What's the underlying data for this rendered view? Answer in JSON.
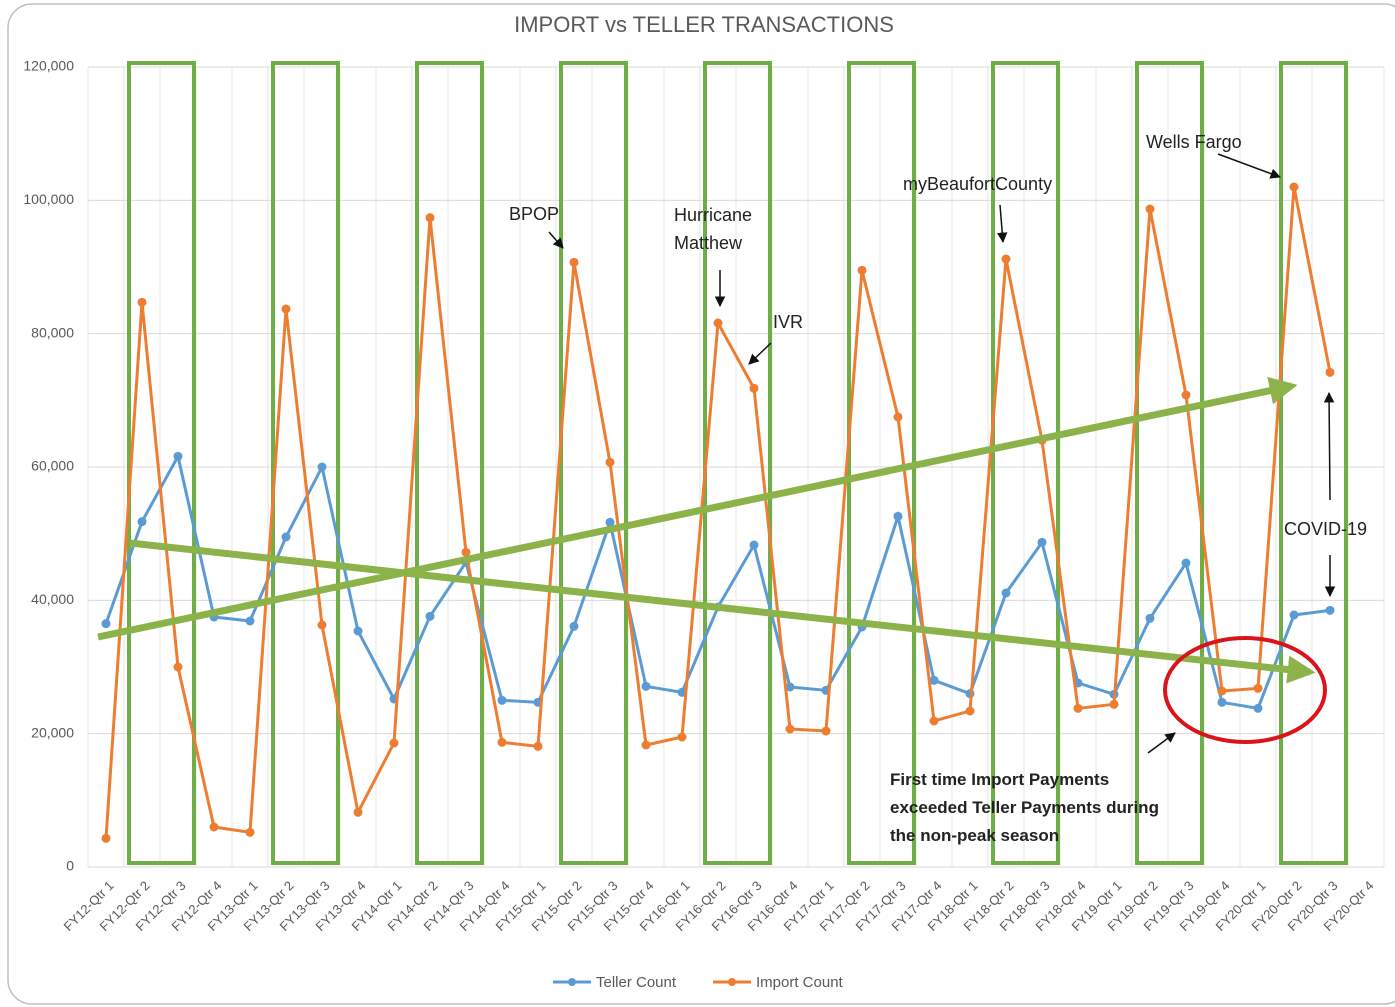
{
  "chart_data": {
    "type": "line",
    "title": "IMPORT vs TELLER TRANSACTIONS",
    "categories": [
      "FY12-Qtr 1",
      "FY12-Qtr 2",
      "FY12-Qtr 3",
      "FY12-Qtr 4",
      "FY13-Qtr 1",
      "FY13-Qtr 2",
      "FY13-Qtr 3",
      "FY13-Qtr 4",
      "FY14-Qtr 1",
      "FY14-Qtr 2",
      "FY14-Qtr 3",
      "FY14-Qtr 4",
      "FY15-Qtr 1",
      "FY15-Qtr 2",
      "FY15-Qtr 3",
      "FY15-Qtr 4",
      "FY16-Qtr 1",
      "FY16-Qtr 2",
      "FY16-Qtr 3",
      "FY16-Qtr 4",
      "FY17-Qtr 1",
      "FY17-Qtr 2",
      "FY17-Qtr 3",
      "FY17-Qtr 4",
      "FY18-Qtr 1",
      "FY18-Qtr 2",
      "FY18-Qtr 3",
      "FY18-Qtr 4",
      "FY19-Qtr 1",
      "FY19-Qtr 2",
      "FY19-Qtr 3",
      "FY19-Qtr 4",
      "FY20-Qtr 1",
      "FY20-Qtr 2",
      "FY20-Qtr 3",
      "FY20-Qtr 4"
    ],
    "series": [
      {
        "name": "Teller Count",
        "color": "#5b9bd5",
        "values": [
          36500,
          51800,
          61600,
          37500,
          36900,
          49500,
          60000,
          35400,
          25200,
          37600,
          45700,
          25000,
          24700,
          36100,
          51700,
          27100,
          26200,
          39000,
          48300,
          27000,
          26500,
          36000,
          52600,
          28000,
          26000,
          41100,
          48700,
          27600,
          25900,
          37300,
          45600,
          24700,
          23800,
          37800,
          38500,
          null
        ]
      },
      {
        "name": "Import Count",
        "color": "#ed7d31",
        "values": [
          4300,
          84700,
          30000,
          6000,
          5200,
          83700,
          36300,
          8200,
          18600,
          97400,
          47200,
          18700,
          18100,
          90700,
          60700,
          18300,
          19500,
          81600,
          71800,
          20700,
          20400,
          89500,
          67500,
          21900,
          23400,
          91200,
          64000,
          23800,
          24400,
          98700,
          70800,
          26400,
          26800,
          102000,
          74200,
          null
        ]
      }
    ],
    "ylim": [
      0,
      120000
    ],
    "yticks": [
      0,
      {
        "value": 20000,
        "label": "20,000"
      },
      {
        "value": 40000,
        "label": "40,000"
      },
      {
        "value": 60000,
        "label": "60,000"
      },
      {
        "value": 80000,
        "label": "80,000"
      },
      {
        "value": 100000,
        "label": "100,000"
      },
      {
        "value": 120000,
        "label": "120,000"
      }
    ],
    "grid": true,
    "legend": "bottom",
    "annotations": [
      "BPOP",
      "Hurricane Matthew",
      "IVR",
      "myBeaufortCounty",
      "Wells Fargo",
      "COVID-19",
      "First time Import Payments exceeded Teller Payments during the non-peak season"
    ]
  }
}
